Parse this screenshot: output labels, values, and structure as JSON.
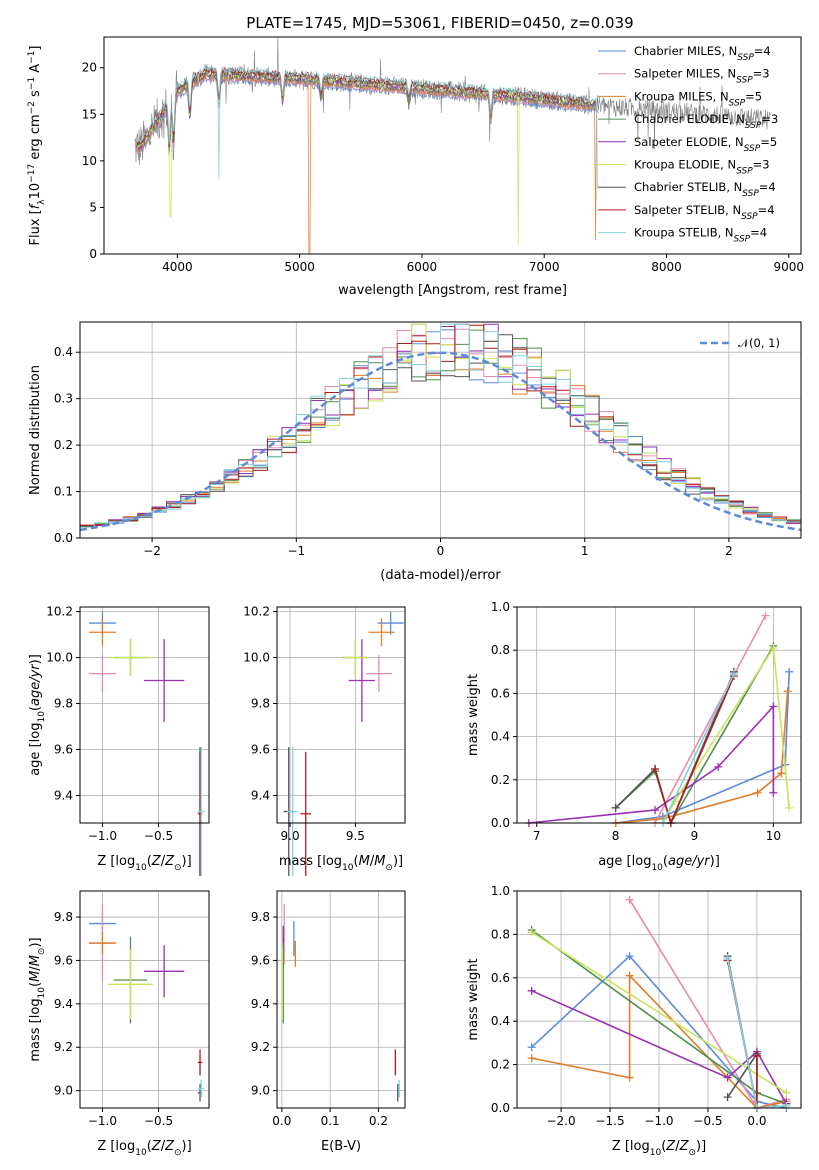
{
  "figure": {
    "title": "PLATE=1745, MJD=53061, FIBERID=0450, z=0.039"
  },
  "chart_data": [
    {
      "id": "spectrum",
      "type": "line",
      "xlabel": "wavelength [Angstrom, rest frame]",
      "ylabel": "Flux [fλ10⁻¹⁷ erg cm⁻² s⁻¹ A⁻¹]",
      "xlim": [
        3400,
        9100
      ],
      "ylim": [
        0,
        23.3
      ],
      "xticks": [
        4000,
        5000,
        6000,
        7000,
        8000,
        9000
      ],
      "yticks": [
        0,
        5,
        10,
        15,
        20
      ],
      "grid": false,
      "legend_position": "top-right",
      "data_series": {
        "name": "data",
        "color": "#808080",
        "x_range": [
          3650,
          8850
        ]
      },
      "series": [
        {
          "name": "Chabrier MILES, Nₛₛₚ=4",
          "color": "#5b8bd9"
        },
        {
          "name": "Salpeter MILES, Nₛₛₚ=3",
          "color": "#e98ab0"
        },
        {
          "name": "Kroupa MILES, Nₛₛₚ=5",
          "color": "#e07d27"
        },
        {
          "name": "Chabrier ELODIE, Nₛₛₚ=3",
          "color": "#4e8f4e"
        },
        {
          "name": "Salpeter ELODIE, Nₛₛₚ=5",
          "color": "#9a2fb2"
        },
        {
          "name": "Kroupa ELODIE, Nₛₛₚ=3",
          "color": "#c9e35a"
        },
        {
          "name": "Chabrier STELIB, Nₛₛₚ=4",
          "color": "#555555"
        },
        {
          "name": "Salpeter STELIB, Nₛₛₚ=4",
          "color": "#b01b1b"
        },
        {
          "name": "Kroupa STELIB, Nₛₛₚ=4",
          "color": "#7fd3dc"
        }
      ],
      "legend_labels": [
        {
          "base": "Chabrier MILES, N",
          "sub": "SSP",
          "tail": "=4"
        },
        {
          "base": "Salpeter MILES, N",
          "sub": "SSP",
          "tail": "=3"
        },
        {
          "base": "Kroupa MILES, N",
          "sub": "SSP",
          "tail": "=5"
        },
        {
          "base": "Chabrier ELODIE, N",
          "sub": "SSP",
          "tail": "=3"
        },
        {
          "base": "Salpeter ELODIE, N",
          "sub": "SSP",
          "tail": "=5"
        },
        {
          "base": "Kroupa ELODIE, N",
          "sub": "SSP",
          "tail": "=3"
        },
        {
          "base": "Chabrier STELIB, N",
          "sub": "SSP",
          "tail": "=4"
        },
        {
          "base": "Salpeter STELIB, N",
          "sub": "SSP",
          "tail": "=4"
        },
        {
          "base": "Kroupa STELIB, N",
          "sub": "SSP",
          "tail": "=4"
        }
      ]
    },
    {
      "id": "residuals",
      "type": "histogram",
      "xlabel": "(data-model)/error",
      "ylabel": "Normed distribution",
      "xlim": [
        -2.5,
        2.5
      ],
      "ylim": [
        0,
        0.465
      ],
      "xticks": [
        -2,
        -1,
        0,
        1,
        2
      ],
      "xtick_labels": [
        "−2",
        "−1",
        "0",
        "1",
        "2"
      ],
      "yticks": [
        0.0,
        0.1,
        0.2,
        0.3,
        0.4
      ],
      "ytick_labels": [
        "0.0",
        "0.1",
        "0.2",
        "0.3",
        "0.4"
      ],
      "grid": true,
      "legend_position": "top-right",
      "gaussian": {
        "label": "𝒩(0, 1)",
        "mu": 0,
        "sigma": 1,
        "color": "#5b8bd9"
      },
      "bin_width": 0.1,
      "bin_start": -2.5
    },
    {
      "id": "age_vs_Z",
      "type": "scatter",
      "xlabel": "Z [log₁₀(Z/Z⊙)]",
      "ylabel": "age  [log₁₀(age/yr)]",
      "xlim": [
        -1.2,
        -0.05
      ],
      "ylim": [
        9.28,
        10.22
      ],
      "xticks": [
        -1.0,
        -0.5
      ],
      "xtick_labels": [
        "−1.0",
        "−0.5"
      ],
      "yticks": [
        9.4,
        9.6,
        9.8,
        10.0,
        10.2
      ],
      "ytick_labels": [
        "9.4",
        "9.6",
        "9.8",
        "10.0",
        "10.2"
      ],
      "grid": true,
      "points": [
        {
          "series": 0,
          "x": -1.0,
          "y": 10.15,
          "xerr": 0.12,
          "yerr": 0.05
        },
        {
          "series": 1,
          "x": -1.0,
          "y": 9.93,
          "xerr": 0.12,
          "yerr": 0.08
        },
        {
          "series": 2,
          "x": -1.0,
          "y": 10.11,
          "xerr": 0.12,
          "yerr": 0.06
        },
        {
          "series": 3,
          "x": -0.75,
          "y": 10.0,
          "xerr": 0.15,
          "yerr": 0.08
        },
        {
          "series": 4,
          "x": -0.45,
          "y": 9.9,
          "xerr": 0.18,
          "yerr": 0.18
        },
        {
          "series": 5,
          "x": -0.75,
          "y": 10.0,
          "xerr": 0.2,
          "yerr": 0.08
        },
        {
          "series": 6,
          "x": -0.13,
          "y": 9.33,
          "xerr": 0.02,
          "yerr": 0.28
        },
        {
          "series": 7,
          "x": -0.13,
          "y": 9.32,
          "xerr": 0.02,
          "yerr": 0.27
        },
        {
          "series": 8,
          "x": -0.12,
          "y": 9.33,
          "xerr": 0.03,
          "yerr": 0.28
        }
      ]
    },
    {
      "id": "age_vs_mass",
      "type": "scatter",
      "xlabel": "mass [log₁₀(M/M⊙)]",
      "ylabel": "",
      "xlim": [
        8.9,
        9.88
      ],
      "ylim": [
        9.28,
        10.22
      ],
      "xticks": [
        9.0,
        9.5
      ],
      "xtick_labels": [
        "9.0",
        "9.5"
      ],
      "yticks": [
        9.4,
        9.6,
        9.8,
        10.0,
        10.2
      ],
      "ytick_labels": [
        "9.4",
        "9.6",
        "9.8",
        "10.0",
        "10.2"
      ],
      "grid": true,
      "points": [
        {
          "series": 0,
          "x": 9.77,
          "y": 10.15,
          "xerr": 0.1,
          "yerr": 0.05
        },
        {
          "series": 1,
          "x": 9.68,
          "y": 9.93,
          "xerr": 0.1,
          "yerr": 0.08
        },
        {
          "series": 2,
          "x": 9.7,
          "y": 10.11,
          "xerr": 0.1,
          "yerr": 0.06
        },
        {
          "series": 3,
          "x": 9.5,
          "y": 10.0,
          "xerr": 0.1,
          "yerr": 0.08
        },
        {
          "series": 4,
          "x": 9.55,
          "y": 9.9,
          "xerr": 0.1,
          "yerr": 0.18
        },
        {
          "series": 5,
          "x": 9.5,
          "y": 10.0,
          "xerr": 0.1,
          "yerr": 0.08
        },
        {
          "series": 6,
          "x": 8.99,
          "y": 9.33,
          "xerr": 0.04,
          "yerr": 0.28
        },
        {
          "series": 7,
          "x": 9.12,
          "y": 9.32,
          "xerr": 0.04,
          "yerr": 0.27
        },
        {
          "series": 8,
          "x": 9.02,
          "y": 9.33,
          "xerr": 0.04,
          "yerr": 0.28
        }
      ]
    },
    {
      "id": "mass_weight_vs_age",
      "type": "line",
      "xlabel": "age  [log₁₀(age/yr)]",
      "ylabel": "mass weight",
      "xlim": [
        6.75,
        10.35
      ],
      "ylim": [
        0,
        1.0
      ],
      "xticks": [
        7,
        8,
        9,
        10
      ],
      "yticks": [
        0.0,
        0.2,
        0.4,
        0.6,
        0.8,
        1.0
      ],
      "ytick_labels": [
        "0.0",
        "0.2",
        "0.4",
        "0.6",
        "0.8",
        "1.0"
      ],
      "grid": true,
      "series": [
        {
          "series": 0,
          "points": [
            [
              8.0,
              0.0
            ],
            [
              8.6,
              0.03
            ],
            [
              10.15,
              0.27
            ],
            [
              10.2,
              0.7
            ]
          ]
        },
        {
          "series": 1,
          "points": [
            [
              8.5,
              0.0
            ],
            [
              9.9,
              0.96
            ]
          ]
        },
        {
          "series": 2,
          "points": [
            [
              8.0,
              0.0
            ],
            [
              8.6,
              0.02
            ],
            [
              9.8,
              0.14
            ],
            [
              10.1,
              0.23
            ],
            [
              10.18,
              0.61
            ]
          ]
        },
        {
          "series": 3,
          "points": [
            [
              8.0,
              0.07
            ],
            [
              8.5,
              0.24
            ],
            [
              8.7,
              0.0
            ],
            [
              10.0,
              0.82
            ]
          ]
        },
        {
          "series": 4,
          "points": [
            [
              6.9,
              0.0
            ],
            [
              8.5,
              0.06
            ],
            [
              9.3,
              0.26
            ],
            [
              10.0,
              0.54
            ],
            [
              10.0,
              0.14
            ]
          ]
        },
        {
          "series": 5,
          "points": [
            [
              8.6,
              0.0
            ],
            [
              8.75,
              0.1
            ],
            [
              10.0,
              0.81
            ],
            [
              10.2,
              0.07
            ]
          ]
        },
        {
          "series": 6,
          "points": [
            [
              8.0,
              0.07
            ],
            [
              8.5,
              0.25
            ],
            [
              8.7,
              0.0
            ],
            [
              9.5,
              0.7
            ]
          ]
        },
        {
          "series": 7,
          "points": [
            [
              8.5,
              0.25
            ],
            [
              8.7,
              0.0
            ],
            [
              9.5,
              0.68
            ]
          ]
        },
        {
          "series": 8,
          "points": [
            [
              8.6,
              0.0
            ],
            [
              9.5,
              0.69
            ]
          ]
        }
      ]
    },
    {
      "id": "mass_vs_Z",
      "type": "scatter",
      "xlabel": "Z [log₁₀(Z/Z⊙)]",
      "ylabel": "mass [log₁₀(M/M⊙)]",
      "xlim": [
        -1.2,
        -0.05
      ],
      "ylim": [
        8.92,
        9.92
      ],
      "xticks": [
        -1.0,
        -0.5
      ],
      "xtick_labels": [
        "−1.0",
        "−0.5"
      ],
      "yticks": [
        9.0,
        9.2,
        9.4,
        9.6,
        9.8
      ],
      "ytick_labels": [
        "9.0",
        "9.2",
        "9.4",
        "9.6",
        "9.8"
      ],
      "grid": true,
      "points": [
        {
          "series": 0,
          "x": -1.0,
          "y": 9.77,
          "xerr": 0.12,
          "yerr": 0.05
        },
        {
          "series": 1,
          "x": -1.0,
          "y": 9.68,
          "xerr": 0.12,
          "yerr": 0.18
        },
        {
          "series": 2,
          "x": -1.0,
          "y": 9.68,
          "xerr": 0.12,
          "yerr": 0.05
        },
        {
          "series": 3,
          "x": -0.75,
          "y": 9.51,
          "xerr": 0.15,
          "yerr": 0.2
        },
        {
          "series": 4,
          "x": -0.45,
          "y": 9.55,
          "xerr": 0.18,
          "yerr": 0.12
        },
        {
          "series": 5,
          "x": -0.75,
          "y": 9.49,
          "xerr": 0.2,
          "yerr": 0.16
        },
        {
          "series": 6,
          "x": -0.13,
          "y": 8.99,
          "xerr": 0.02,
          "yerr": 0.04
        },
        {
          "series": 7,
          "x": -0.13,
          "y": 9.13,
          "xerr": 0.02,
          "yerr": 0.06
        },
        {
          "series": 8,
          "x": -0.12,
          "y": 9.01,
          "xerr": 0.03,
          "yerr": 0.04
        }
      ]
    },
    {
      "id": "mass_vs_ebv",
      "type": "scatter",
      "xlabel": "E(B-V)",
      "ylabel": "",
      "xlim": [
        -0.01,
        0.255
      ],
      "ylim": [
        8.92,
        9.92
      ],
      "xticks": [
        0.0,
        0.1,
        0.2
      ],
      "xtick_labels": [
        "0.0",
        "0.1",
        "0.2"
      ],
      "yticks": [
        9.0,
        9.2,
        9.4,
        9.6,
        9.8
      ],
      "ytick_labels": [
        "9.0",
        "9.2",
        "9.4",
        "9.6",
        "9.8"
      ],
      "grid": true,
      "points": [
        {
          "series": 0,
          "x": 0.025,
          "y": 9.7,
          "xerr": 0.0,
          "yerr": 0.08
        },
        {
          "series": 1,
          "x": 0.005,
          "y": 9.72,
          "xerr": 0.0,
          "yerr": 0.14
        },
        {
          "series": 2,
          "x": 0.028,
          "y": 9.63,
          "xerr": 0.0,
          "yerr": 0.06
        },
        {
          "series": 3,
          "x": 0.003,
          "y": 9.51,
          "xerr": 0.0,
          "yerr": 0.2
        },
        {
          "series": 4,
          "x": 0.003,
          "y": 9.72,
          "xerr": 0.0,
          "yerr": 0.04
        },
        {
          "series": 5,
          "x": 0.001,
          "y": 9.49,
          "xerr": 0.0,
          "yerr": 0.16
        },
        {
          "series": 6,
          "x": 0.24,
          "y": 8.99,
          "xerr": 0.0,
          "yerr": 0.04
        },
        {
          "series": 7,
          "x": 0.235,
          "y": 9.13,
          "xerr": 0.0,
          "yerr": 0.06
        },
        {
          "series": 8,
          "x": 0.243,
          "y": 9.01,
          "xerr": 0.0,
          "yerr": 0.04
        }
      ]
    },
    {
      "id": "mass_weight_vs_Z",
      "type": "line",
      "xlabel": "Z [log₁₀(Z/Z⊙)]",
      "ylabel": "mass weight",
      "xlim": [
        -2.45,
        0.45
      ],
      "ylim": [
        0,
        1.0
      ],
      "xticks": [
        -2.0,
        -1.5,
        -1.0,
        -0.5,
        0.0
      ],
      "xtick_labels": [
        "−2.0",
        "−1.5",
        "−1.0",
        "−0.5",
        "0.0"
      ],
      "yticks": [
        0.0,
        0.2,
        0.4,
        0.6,
        0.8,
        1.0
      ],
      "ytick_labels": [
        "0.0",
        "0.2",
        "0.4",
        "0.6",
        "0.8",
        "1.0"
      ],
      "grid": true,
      "series": [
        {
          "series": 0,
          "points": [
            [
              -2.3,
              0.28
            ],
            [
              -1.3,
              0.7
            ],
            [
              0.0,
              0.03
            ],
            [
              0.3,
              0.0
            ]
          ]
        },
        {
          "series": 1,
          "points": [
            [
              -1.3,
              0.96
            ],
            [
              0.0,
              0.0
            ],
            [
              0.3,
              0.04
            ]
          ]
        },
        {
          "series": 2,
          "points": [
            [
              -2.3,
              0.23
            ],
            [
              -1.3,
              0.14
            ],
            [
              -1.3,
              0.61
            ],
            [
              0.0,
              0.0
            ],
            [
              0.3,
              0.03
            ]
          ]
        },
        {
          "series": 3,
          "points": [
            [
              -2.3,
              0.82
            ],
            [
              0.0,
              0.07
            ],
            [
              0.3,
              0.02
            ]
          ]
        },
        {
          "series": 4,
          "points": [
            [
              -2.3,
              0.54
            ],
            [
              -0.3,
              0.14
            ],
            [
              0.0,
              0.26
            ],
            [
              0.3,
              0.02
            ]
          ]
        },
        {
          "series": 5,
          "points": [
            [
              -2.3,
              0.81
            ],
            [
              0.3,
              0.07
            ]
          ]
        },
        {
          "series": 6,
          "points": [
            [
              -0.3,
              0.7
            ],
            [
              0.0,
              0.0
            ],
            [
              0.0,
              0.25
            ],
            [
              -0.3,
              0.05
            ]
          ]
        },
        {
          "series": 7,
          "points": [
            [
              -0.3,
              0.68
            ],
            [
              0.0,
              0.0
            ],
            [
              0.0,
              0.24
            ]
          ]
        },
        {
          "series": 8,
          "points": [
            [
              -0.3,
              0.69
            ],
            [
              0.0,
              0.0
            ],
            [
              0.3,
              0.01
            ]
          ]
        }
      ]
    }
  ]
}
